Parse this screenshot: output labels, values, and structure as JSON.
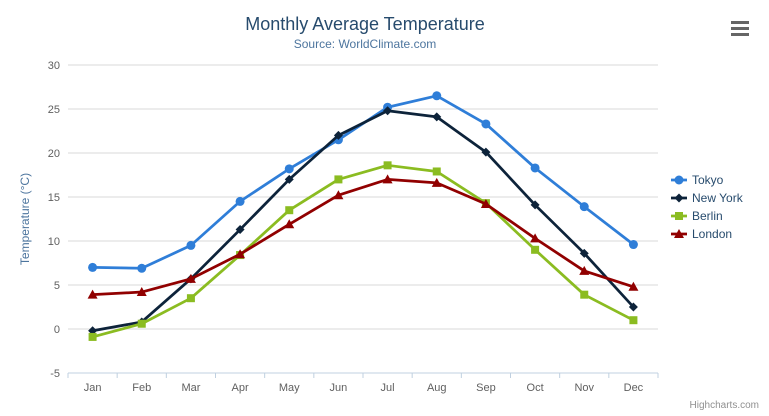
{
  "header": {
    "title": "Monthly Average Temperature",
    "subtitle": "Source: WorldClimate.com"
  },
  "credits": "Highcharts.com",
  "icons": {
    "context_menu": "hamburger-menu-icon"
  },
  "colors": {
    "title": "#274b6d",
    "subtitle": "#4d759e",
    "axis_title": "#4d759e",
    "axis_labels": "#606060",
    "gridline": "#d8d8d8",
    "axis_line": "#c0d0e0",
    "legend_text": "#274b6d",
    "credits": "#909090",
    "menu_icon": "#666666",
    "background": "#ffffff"
  },
  "chart_data": {
    "type": "line",
    "title": "Monthly Average Temperature",
    "subtitle": "Source: WorldClimate.com",
    "xlabel": "",
    "ylabel": "Temperature (°C)",
    "categories": [
      "Jan",
      "Feb",
      "Mar",
      "Apr",
      "May",
      "Jun",
      "Jul",
      "Aug",
      "Sep",
      "Oct",
      "Nov",
      "Dec"
    ],
    "ylim": [
      -5,
      30
    ],
    "ytick_interval": 5,
    "yticks": [
      -5,
      0,
      5,
      10,
      15,
      20,
      25,
      30
    ],
    "grid": true,
    "legend_position": "right",
    "series": [
      {
        "name": "Tokyo",
        "color": "#2f7ed8",
        "marker": "circle",
        "values": [
          7.0,
          6.9,
          9.5,
          14.5,
          18.2,
          21.5,
          25.2,
          26.5,
          23.3,
          18.3,
          13.9,
          9.6
        ]
      },
      {
        "name": "New York",
        "color": "#0d233a",
        "marker": "diamond",
        "values": [
          -0.2,
          0.8,
          5.7,
          11.3,
          17.0,
          22.0,
          24.8,
          24.1,
          20.1,
          14.1,
          8.6,
          2.5
        ]
      },
      {
        "name": "Berlin",
        "color": "#8bbc21",
        "marker": "square",
        "values": [
          -0.9,
          0.6,
          3.5,
          8.4,
          13.5,
          17.0,
          18.6,
          17.9,
          14.3,
          9.0,
          3.9,
          1.0
        ]
      },
      {
        "name": "London",
        "color": "#910000",
        "marker": "triangle",
        "values": [
          3.9,
          4.2,
          5.7,
          8.5,
          11.9,
          15.2,
          17.0,
          16.6,
          14.2,
          10.3,
          6.6,
          4.8
        ]
      }
    ]
  }
}
